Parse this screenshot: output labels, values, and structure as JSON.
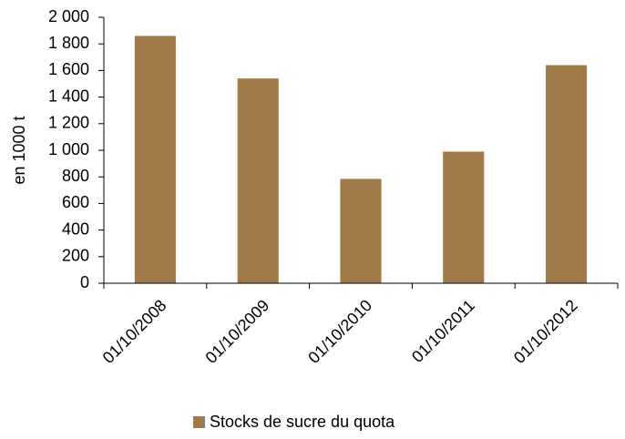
{
  "chart_data": {
    "type": "bar",
    "y_label": "en 1000 t",
    "categories": [
      "01/10/2008",
      "01/10/2009",
      "01/10/2010",
      "01/10/2011",
      "01/10/2012"
    ],
    "series": [
      {
        "name": "Stocks de sucre du quota",
        "color": "#a07a48",
        "values": [
          1860,
          1540,
          785,
          990,
          1640
        ]
      }
    ],
    "ylim": [
      0,
      2000
    ],
    "yticks": [
      0,
      200,
      400,
      600,
      800,
      {
        "value": 1000,
        "label": "1 000"
      },
      {
        "value": 1200,
        "label": "1 200"
      },
      {
        "value": 1400,
        "label": "1 400"
      },
      {
        "value": 1600,
        "label": "1 600"
      },
      {
        "value": 1800,
        "label": "1 800"
      },
      {
        "value": 2000,
        "label": "2 000"
      }
    ],
    "legend": "bottom"
  }
}
